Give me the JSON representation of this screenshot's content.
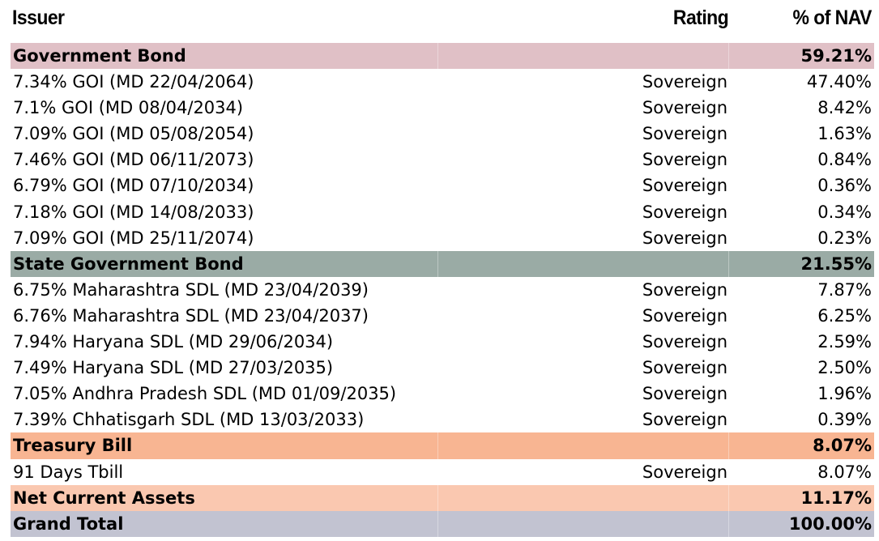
{
  "header": {
    "issuer": "Issuer",
    "rating": "Rating",
    "nav": "% of NAV"
  },
  "groups": [
    {
      "name": "Government Bond",
      "nav": "59.21%",
      "color": "#e0c0c6",
      "items": [
        {
          "issuer": "7.34% GOI (MD 22/04/2064)",
          "rating": "Sovereign",
          "nav": "47.40%"
        },
        {
          "issuer": "7.1% GOI (MD 08/04/2034)",
          "rating": "Sovereign",
          "nav": "8.42%"
        },
        {
          "issuer": "7.09% GOI (MD 05/08/2054)",
          "rating": "Sovereign",
          "nav": "1.63%"
        },
        {
          "issuer": "7.46% GOI (MD 06/11/2073)",
          "rating": "Sovereign",
          "nav": "0.84%"
        },
        {
          "issuer": "6.79% GOI (MD 07/10/2034)",
          "rating": "Sovereign",
          "nav": "0.36%"
        },
        {
          "issuer": "7.18% GOI (MD 14/08/2033)",
          "rating": "Sovereign",
          "nav": "0.34%"
        },
        {
          "issuer": "7.09% GOI (MD 25/11/2074)",
          "rating": "Sovereign",
          "nav": "0.23%"
        }
      ]
    },
    {
      "name": "State Government Bond",
      "nav": "21.55%",
      "color": "#9aaba5",
      "items": [
        {
          "issuer": "6.75% Maharashtra SDL (MD 23/04/2039)",
          "rating": "Sovereign",
          "nav": "7.87%"
        },
        {
          "issuer": "6.76% Maharashtra SDL (MD 23/04/2037)",
          "rating": "Sovereign",
          "nav": "6.25%"
        },
        {
          "issuer": "7.94% Haryana SDL (MD 29/06/2034)",
          "rating": "Sovereign",
          "nav": "2.59%"
        },
        {
          "issuer": "7.49% Haryana SDL (MD 27/03/2035)",
          "rating": "Sovereign",
          "nav": "2.50%"
        },
        {
          "issuer": "7.05% Andhra Pradesh SDL (MD 01/09/2035)",
          "rating": "Sovereign",
          "nav": "1.96%"
        },
        {
          "issuer": "7.39% Chhatisgarh SDL (MD 13/03/2033)",
          "rating": "Sovereign",
          "nav": "0.39%"
        }
      ]
    },
    {
      "name": "Treasury Bill",
      "nav": "8.07%",
      "color": "#f8b592",
      "items": [
        {
          "issuer": "91 Days Tbill",
          "rating": "Sovereign",
          "nav": "8.07%"
        }
      ]
    }
  ],
  "net_current_assets": {
    "name": "Net Current Assets",
    "nav": "11.17%",
    "color": "#fac8b0"
  },
  "grand_total": {
    "name": "Grand Total",
    "nav": "100.00%",
    "color": "#c2c3d1"
  }
}
